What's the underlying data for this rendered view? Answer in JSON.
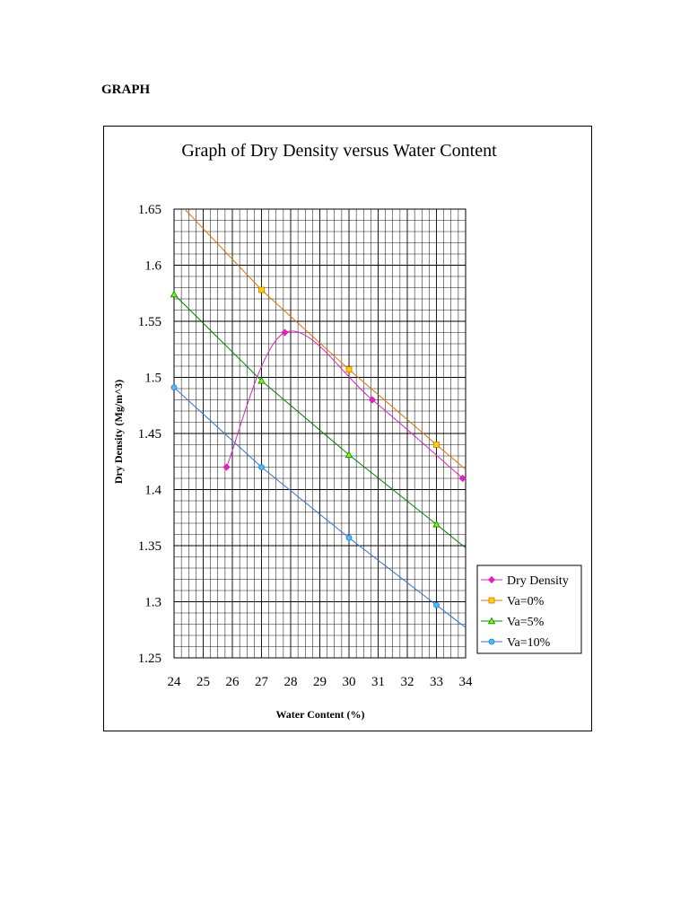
{
  "page": {
    "heading": "GRAPH"
  },
  "chart_data": {
    "type": "line",
    "title": "Graph of Dry Density versus Water Content",
    "xlabel": "Water Content (%)",
    "ylabel": "Dry Density (Mg/m^3)",
    "xlim": [
      24,
      34
    ],
    "ylim": [
      1.25,
      1.65
    ],
    "x_ticks": [
      "24",
      "25",
      "26",
      "27",
      "28",
      "29",
      "30",
      "31",
      "32",
      "33",
      "34"
    ],
    "y_ticks": [
      "1.25",
      "1.3",
      "1.35",
      "1.4",
      "1.45",
      "1.5",
      "1.55",
      "1.6",
      "1.65"
    ],
    "grid": true,
    "legend_position": "bottom-right",
    "series": [
      {
        "name": "Dry Density",
        "color": "#e020c0",
        "marker": "diamond",
        "smooth": true,
        "points": [
          [
            25.8,
            1.42
          ],
          [
            27.8,
            1.54
          ],
          [
            30.8,
            1.48
          ],
          [
            33.9,
            1.41
          ]
        ]
      },
      {
        "name": "Va=0%",
        "color": "#e07000",
        "marker_color": "#ffd000",
        "marker": "square",
        "smooth": false,
        "points": [
          [
            24,
            1.66
          ],
          [
            27,
            1.578
          ],
          [
            30,
            1.507
          ],
          [
            33,
            1.44
          ],
          [
            34,
            1.418
          ]
        ]
      },
      {
        "name": "Va=5%",
        "color": "#008000",
        "marker_color": "#80ff00",
        "marker": "triangle",
        "smooth": false,
        "points": [
          [
            24,
            1.574
          ],
          [
            27,
            1.497
          ],
          [
            30,
            1.431
          ],
          [
            33,
            1.369
          ],
          [
            34,
            1.348
          ]
        ]
      },
      {
        "name": "Va=10%",
        "color": "#3070d0",
        "marker_color": "#40c0ff",
        "marker": "circle",
        "smooth": false,
        "points": [
          [
            24,
            1.491
          ],
          [
            27,
            1.42
          ],
          [
            30,
            1.357
          ],
          [
            33,
            1.297
          ],
          [
            34,
            1.277
          ]
        ]
      }
    ]
  }
}
